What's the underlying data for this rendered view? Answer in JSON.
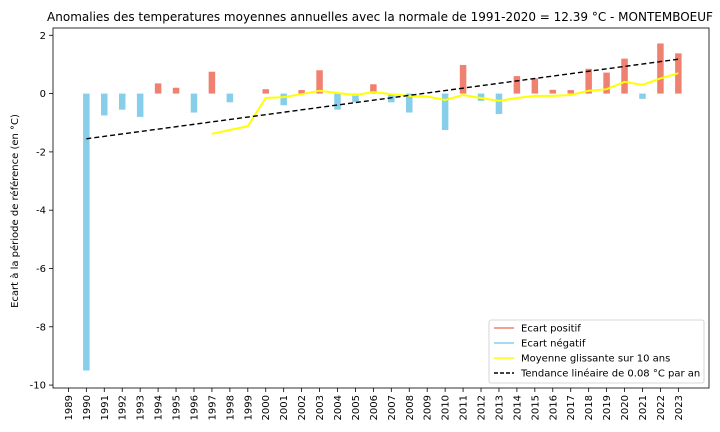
{
  "chart_data": {
    "type": "bar",
    "title": "Anomalies des temperatures moyennes annuelles avec la normale de 1991-2020 = 12.39 °C - MONTEMBOEUF",
    "ylabel": "Ecart à la période de référence (en °C)",
    "xlabel": "",
    "ylim": [
      -10.1,
      2.25
    ],
    "yticks": [
      -10,
      -8,
      -6,
      -4,
      -2,
      0,
      2
    ],
    "grid": false,
    "legend_position": "bottom-right",
    "colors": {
      "positive": "#f08070",
      "negative": "#87ceeb",
      "rolling": "#ffff00",
      "trend": "#000000"
    },
    "categories": [
      "1989",
      "1990",
      "1991",
      "1992",
      "1993",
      "1994",
      "1995",
      "1996",
      "1997",
      "1998",
      "1999",
      "2000",
      "2001",
      "2002",
      "2003",
      "2004",
      "2005",
      "2006",
      "2007",
      "2008",
      "2009",
      "2010",
      "2011",
      "2012",
      "2013",
      "2014",
      "2015",
      "2016",
      "2017",
      "2018",
      "2019",
      "2020",
      "2021",
      "2022",
      "2023"
    ],
    "series": [
      {
        "name": "Ecart positif / Ecart négatif",
        "values": [
          null,
          -9.5,
          -0.75,
          -0.55,
          -0.8,
          0.35,
          0.2,
          -0.65,
          0.75,
          -0.3,
          0.0,
          0.15,
          -0.4,
          0.12,
          0.8,
          -0.55,
          -0.3,
          0.32,
          -0.3,
          -0.65,
          0.0,
          -1.25,
          0.98,
          -0.25,
          -0.7,
          0.6,
          0.52,
          0.13,
          0.12,
          0.85,
          0.72,
          1.2,
          -0.18,
          1.72,
          1.38
        ]
      },
      {
        "name": "Moyenne glissante sur 10 ans",
        "values": [
          null,
          null,
          null,
          null,
          null,
          null,
          null,
          null,
          -1.38,
          -1.25,
          -1.12,
          -0.15,
          -0.12,
          -0.02,
          0.1,
          0.02,
          -0.05,
          0.05,
          -0.02,
          -0.08,
          -0.1,
          -0.22,
          -0.05,
          -0.15,
          -0.25,
          -0.15,
          -0.08,
          -0.08,
          -0.05,
          0.1,
          0.15,
          0.4,
          0.3,
          0.52,
          0.7
        ]
      },
      {
        "name": "Tendance linéaire de 0.08 °C par an",
        "x": [
          "1990",
          "2023"
        ],
        "values": [
          -1.55,
          1.18
        ]
      }
    ],
    "legend": [
      "Ecart positif",
      "Ecart négatif",
      "Moyenne glissante sur 10 ans",
      "Tendance linéaire de 0.08 °C par an"
    ]
  }
}
